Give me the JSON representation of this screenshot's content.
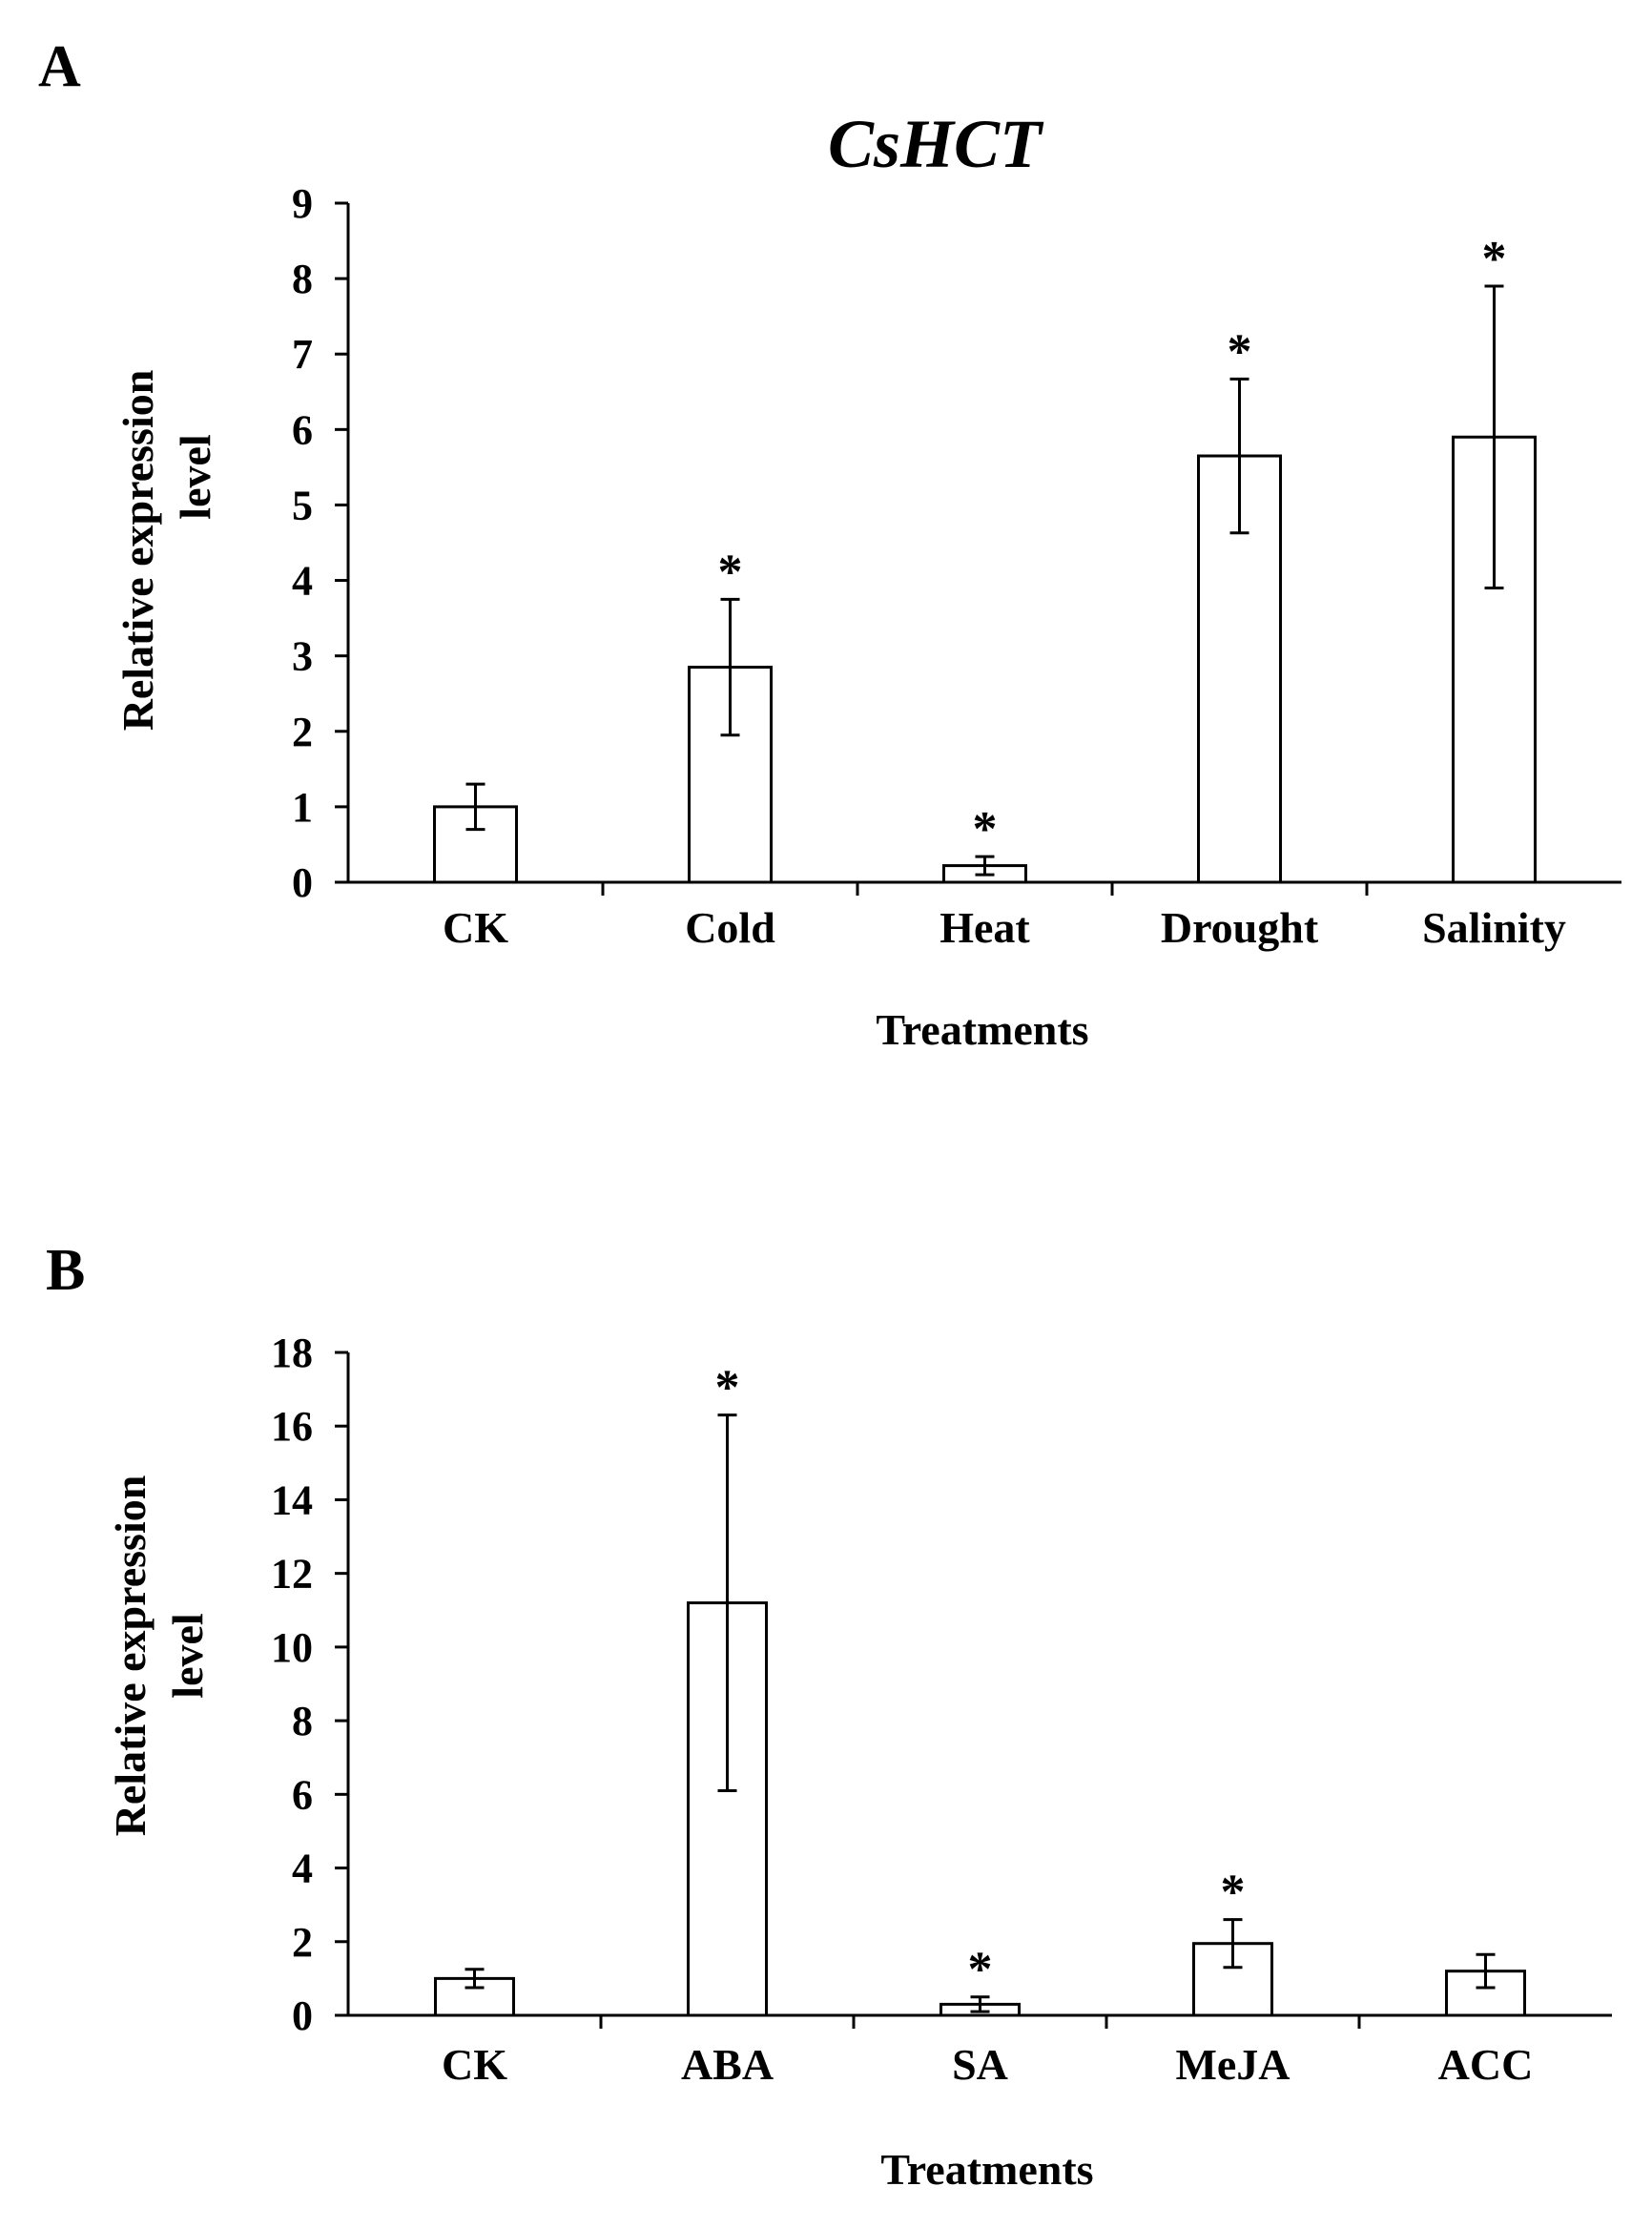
{
  "chart_data": [
    {
      "panel_label": "A",
      "type": "bar",
      "title": "CsHCT",
      "xlabel": "Treatments",
      "ylabel_lines": [
        "Relative expression",
        "level"
      ],
      "ylim": [
        0,
        9
      ],
      "yticks": [
        "0",
        "1",
        "2",
        "3",
        "4",
        "5",
        "6",
        "7",
        "8",
        "9"
      ],
      "categories": [
        "CK",
        "Cold",
        "Heat",
        "Drought",
        "Salinity"
      ],
      "values": [
        1.0,
        2.85,
        0.22,
        5.65,
        5.9
      ],
      "errors": [
        0.3,
        0.9,
        0.12,
        1.02,
        2.0
      ],
      "significance": [
        "",
        "*",
        "*",
        "*",
        "*"
      ],
      "grid": false,
      "bar_color": "#ffffff",
      "edge_color": "#000000"
    },
    {
      "panel_label": "B",
      "type": "bar",
      "title": "",
      "xlabel": "Treatments",
      "ylabel_lines": [
        "Relative expression",
        "level"
      ],
      "ylim": [
        0,
        18
      ],
      "yticks": [
        "0",
        "2",
        "4",
        "6",
        "8",
        "10",
        "12",
        "14",
        "16",
        "18"
      ],
      "categories": [
        "CK",
        "ABA",
        "SA",
        "MeJA",
        "ACC"
      ],
      "values": [
        1.0,
        11.2,
        0.3,
        1.95,
        1.2
      ],
      "errors": [
        0.25,
        5.1,
        0.2,
        0.65,
        0.45
      ],
      "significance": [
        "",
        "*",
        "*",
        "*",
        ""
      ],
      "grid": false,
      "bar_color": "#ffffff",
      "edge_color": "#000000"
    }
  ]
}
